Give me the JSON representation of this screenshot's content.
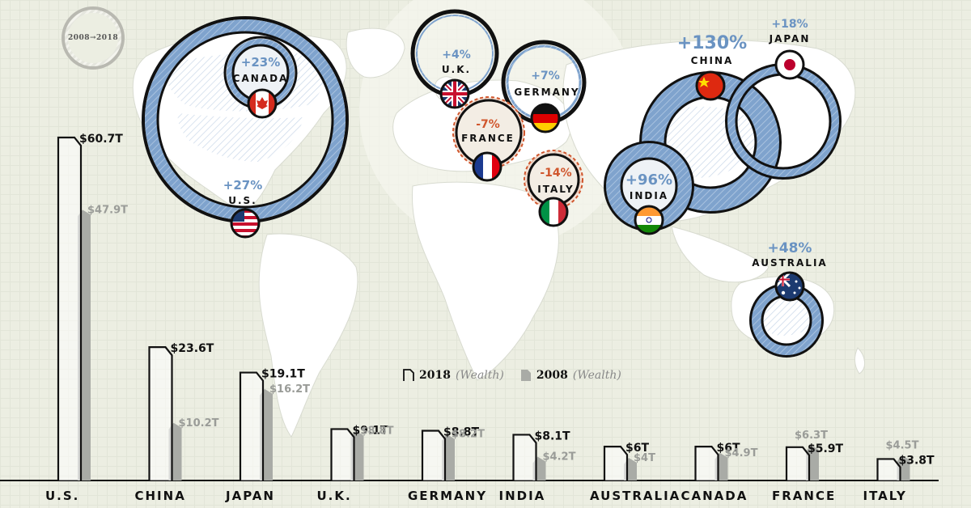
{
  "period_badge": "2008→2018",
  "legend": {
    "y2018": "2018",
    "y2018_sub": "(Wealth)",
    "y2008": "2008",
    "y2008_sub": "(Wealth)"
  },
  "colors": {
    "bar_2008": "#a9aba6",
    "bar_2018_stroke": "#111111",
    "positive_text": "#6a93c2",
    "negative_text": "#d0562d",
    "ring_fill": "#7fa3cd",
    "background": "#eceee2"
  },
  "map_bubbles": [
    {
      "country": "U.S.",
      "change": "+27%",
      "trend": "up",
      "flag": "us-flag-icon"
    },
    {
      "country": "CANADA",
      "change": "+23%",
      "trend": "up",
      "flag": "canada-flag-icon"
    },
    {
      "country": "U.K.",
      "change": "+4%",
      "trend": "up",
      "flag": "uk-flag-icon"
    },
    {
      "country": "GERMANY",
      "change": "+7%",
      "trend": "up",
      "flag": "germany-flag-icon"
    },
    {
      "country": "FRANCE",
      "change": "-7%",
      "trend": "down",
      "flag": "france-flag-icon"
    },
    {
      "country": "ITALY",
      "change": "-14%",
      "trend": "down",
      "flag": "italy-flag-icon"
    },
    {
      "country": "CHINA",
      "change": "+130%",
      "trend": "up",
      "flag": "china-flag-icon"
    },
    {
      "country": "JAPAN",
      "change": "+18%",
      "trend": "up",
      "flag": "japan-flag-icon"
    },
    {
      "country": "INDIA",
      "change": "+96%",
      "trend": "up",
      "flag": "india-flag-icon"
    },
    {
      "country": "AUSTRALIA",
      "change": "+48%",
      "trend": "up",
      "flag": "australia-flag-icon"
    }
  ],
  "chart_data": {
    "type": "bar",
    "categories": [
      "U.S.",
      "CHINA",
      "JAPAN",
      "U.K.",
      "GERMANY",
      "INDIA",
      "AUSTRALIA",
      "CANADA",
      "FRANCE",
      "ITALY"
    ],
    "series": [
      {
        "name": "2018 (Wealth)",
        "values": [
          60.7,
          23.6,
          19.1,
          9.1,
          8.8,
          8.1,
          6,
          6,
          5.9,
          3.8
        ],
        "labels": [
          "$60.7T",
          "$23.6T",
          "$19.1T",
          "$9.1T",
          "$8.8T",
          "$8.1T",
          "$6T",
          "$6T",
          "$5.9T",
          "$3.8T"
        ]
      },
      {
        "name": "2008 (Wealth)",
        "values": [
          47.9,
          10.2,
          16.2,
          8.8,
          8.2,
          4.2,
          4,
          4.9,
          6.3,
          4.5
        ],
        "labels": [
          "$47.9T",
          "$10.2T",
          "$16.2T",
          "$8.8T",
          "$8.2T",
          "$4.2T",
          "$4T",
          "$4.9T",
          "$6.3T",
          "$4.5T"
        ]
      }
    ],
    "xlabel": "",
    "ylabel": "",
    "ylim": [
      0,
      60.7
    ],
    "grid": false,
    "legend_position": "center"
  }
}
